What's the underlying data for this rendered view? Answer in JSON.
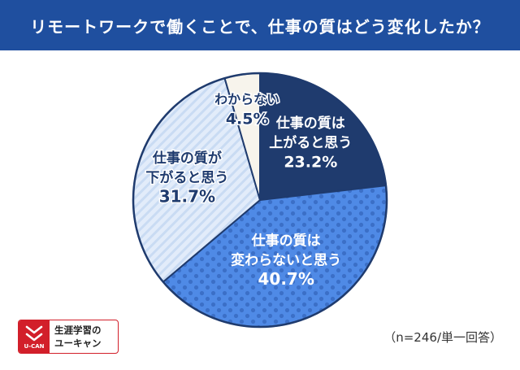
{
  "title": "リモートワークで働くことで、仕事の質はどう変化したか？",
  "chart_data": {
    "type": "pie",
    "title": "リモートワークで働くことで、仕事の質はどう変化したか？",
    "slices": [
      {
        "lines": [
          "仕事の質は",
          "上がると思う"
        ],
        "pct_text": "23.2%",
        "value": 23.2,
        "color": "#1f3b6e",
        "pattern": "solid"
      },
      {
        "lines": [
          "仕事の質は",
          "変わらないと思う"
        ],
        "pct_text": "40.7%",
        "value": 40.7,
        "color": "#4f8ae6",
        "pattern": "dots"
      },
      {
        "lines": [
          "仕事の質が",
          "下がると思う"
        ],
        "pct_text": "31.7%",
        "value": 31.7,
        "color": "#e2ecfa",
        "pattern": "stripes"
      },
      {
        "lines": [
          "わからない"
        ],
        "pct_text": "4.5%",
        "value": 4.5,
        "color": "#f7f4ec",
        "pattern": "solid"
      }
    ]
  },
  "note": "（n=246/単一回答）",
  "logo": {
    "line1": "生涯学習の",
    "line2": "ユーキャン",
    "brand": "U-CAN"
  }
}
